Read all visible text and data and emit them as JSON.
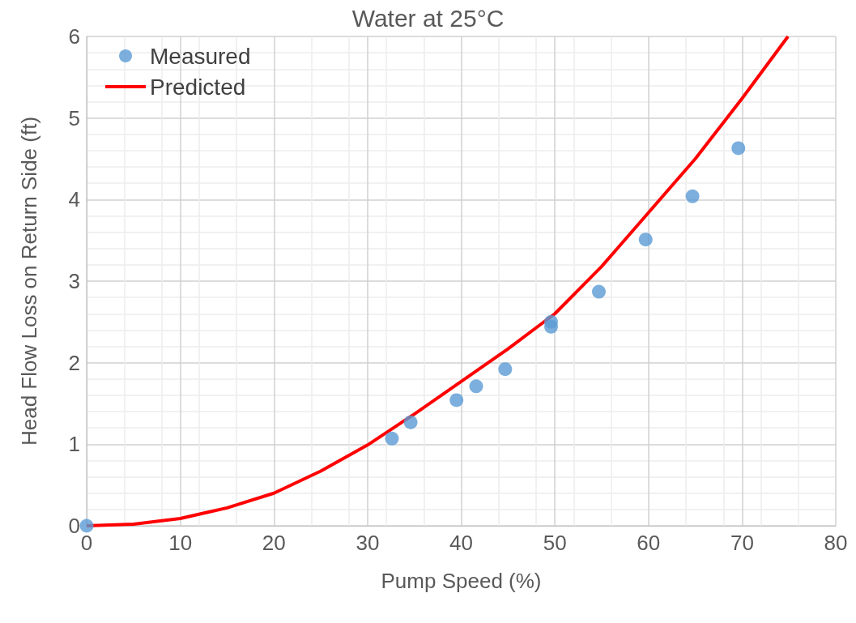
{
  "chart_data": {
    "type": "scatter",
    "title": "Water at 25°C",
    "xlabel": "Pump Speed (%)",
    "ylabel": "Head Flow Loss on Return Side (ft)",
    "xlim": [
      0,
      80
    ],
    "xticks": [
      0,
      10,
      20,
      30,
      40,
      50,
      60,
      70,
      80
    ],
    "ylim": [
      0,
      6
    ],
    "yticks": [
      0,
      1,
      2,
      3,
      4,
      5,
      6
    ],
    "grid": true,
    "legend": "top left",
    "series": [
      {
        "name": "Measured",
        "marker": "circle",
        "color": "#5b9bd5",
        "x": [
          0,
          32.6,
          34.6,
          39.5,
          41.6,
          44.7,
          49.6,
          49.6,
          54.7,
          59.7,
          64.7,
          69.6
        ],
        "values": [
          0,
          1.07,
          1.27,
          1.54,
          1.71,
          1.92,
          2.5,
          2.44,
          2.87,
          3.51,
          4.04,
          4.63
        ]
      },
      {
        "name": "Predicted",
        "type": "line",
        "marker": "none",
        "line_style": "solid",
        "color": "#ff0000",
        "x": [
          0,
          5,
          10,
          15,
          20,
          25,
          30,
          35,
          40,
          45,
          50,
          55,
          60,
          65,
          70,
          74.9
        ],
        "values": [
          0,
          0.02,
          0.09,
          0.22,
          0.4,
          0.67,
          0.99,
          1.37,
          1.77,
          2.17,
          2.6,
          3.18,
          3.84,
          4.5,
          5.24,
          6
        ]
      }
    ]
  }
}
